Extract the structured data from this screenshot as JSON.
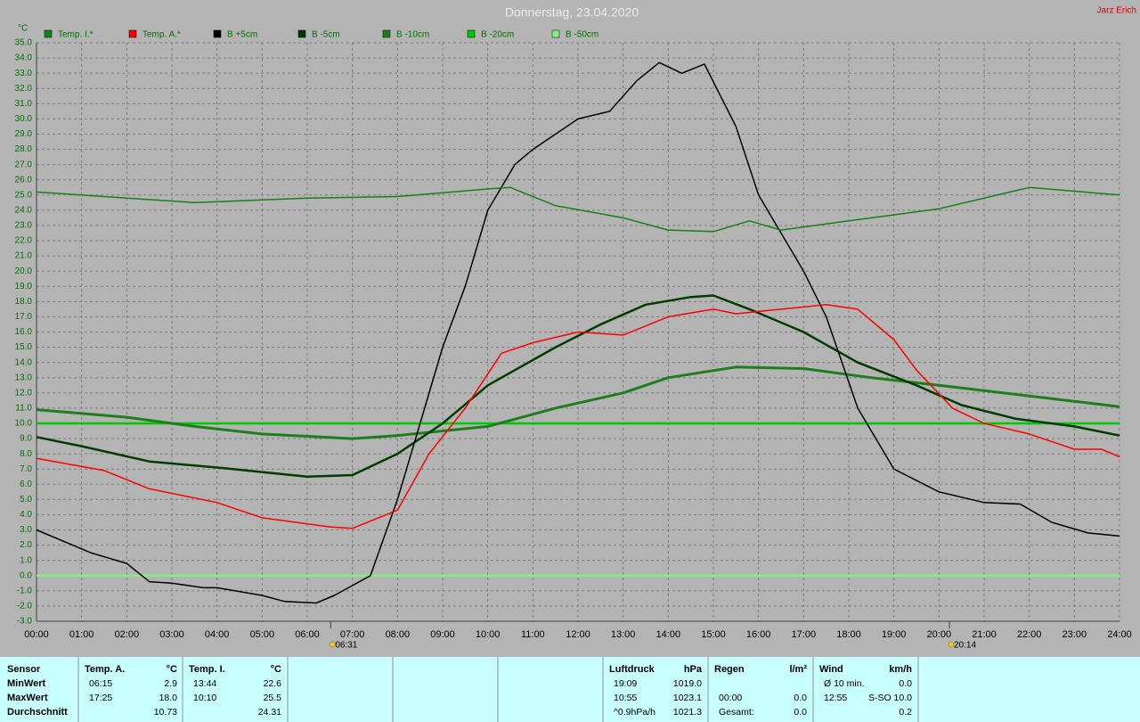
{
  "header": {
    "owner": "Jarz Erich"
  },
  "chart_data": {
    "type": "line",
    "title": "Donnerstag, 23.04.2020",
    "y_unit": "°C",
    "grid": true,
    "xlim": [
      0,
      24
    ],
    "ylim": [
      -3,
      35
    ],
    "xticks": [
      {
        "value": 0,
        "label": "00:00"
      },
      {
        "value": 1,
        "label": "01:00"
      },
      {
        "value": 2,
        "label": "02:00"
      },
      {
        "value": 3,
        "label": "03:00"
      },
      {
        "value": 4,
        "label": "04:00"
      },
      {
        "value": 5,
        "label": "05:00"
      },
      {
        "value": 6,
        "label": "06:00"
      },
      {
        "value": 7,
        "label": "07:00"
      },
      {
        "value": 8,
        "label": "08:00"
      },
      {
        "value": 9,
        "label": "09:00"
      },
      {
        "value": 10,
        "label": "10:00"
      },
      {
        "value": 11,
        "label": "11:00"
      },
      {
        "value": 12,
        "label": "12:00"
      },
      {
        "value": 13,
        "label": "13:00"
      },
      {
        "value": 14,
        "label": "14:00"
      },
      {
        "value": 15,
        "label": "15:00"
      },
      {
        "value": 16,
        "label": "16:00"
      },
      {
        "value": 17,
        "label": "17:00"
      },
      {
        "value": 18,
        "label": "18:00"
      },
      {
        "value": 19,
        "label": "19:00"
      },
      {
        "value": 20,
        "label": "20:00"
      },
      {
        "value": 21,
        "label": "21:00"
      },
      {
        "value": 22,
        "label": "22:00"
      },
      {
        "value": 23,
        "label": "23:00"
      },
      {
        "value": 24,
        "label": "24:00"
      }
    ],
    "yticks": [
      {
        "value": -3,
        "label": "-3.0"
      },
      {
        "value": -2,
        "label": "-2.0"
      },
      {
        "value": -1,
        "label": "-1.0"
      },
      {
        "value": 0,
        "label": "0.0"
      },
      {
        "value": 1,
        "label": "1.0"
      },
      {
        "value": 2,
        "label": "2.0"
      },
      {
        "value": 3,
        "label": "3.0"
      },
      {
        "value": 4,
        "label": "4.0"
      },
      {
        "value": 5,
        "label": "5.0"
      },
      {
        "value": 6,
        "label": "6.0"
      },
      {
        "value": 7,
        "label": "7.0"
      },
      {
        "value": 8,
        "label": "8.0"
      },
      {
        "value": 9,
        "label": "9.0"
      },
      {
        "value": 10,
        "label": "10.0"
      },
      {
        "value": 11,
        "label": "11.0"
      },
      {
        "value": 12,
        "label": "12.0"
      },
      {
        "value": 13,
        "label": "13.0"
      },
      {
        "value": 14,
        "label": "14.0"
      },
      {
        "value": 15,
        "label": "15.0"
      },
      {
        "value": 16,
        "label": "16.0"
      },
      {
        "value": 17,
        "label": "17.0"
      },
      {
        "value": 18,
        "label": "18.0"
      },
      {
        "value": 19,
        "label": "19.0"
      },
      {
        "value": 20,
        "label": "20.0"
      },
      {
        "value": 21,
        "label": "21.0"
      },
      {
        "value": 22,
        "label": "22.0"
      },
      {
        "value": 23,
        "label": "23.0"
      },
      {
        "value": 24,
        "label": "24.0"
      },
      {
        "value": 25,
        "label": "25.0"
      },
      {
        "value": 26,
        "label": "26.0"
      },
      {
        "value": 27,
        "label": "27.0"
      },
      {
        "value": 28,
        "label": "28.0"
      },
      {
        "value": 29,
        "label": "29.0"
      },
      {
        "value": 30,
        "label": "30.0"
      },
      {
        "value": 31,
        "label": "31.0"
      },
      {
        "value": 32,
        "label": "32.0"
      },
      {
        "value": 33,
        "label": "33.0"
      },
      {
        "value": 34,
        "label": "34.0"
      },
      {
        "value": 35,
        "label": "35.0"
      }
    ],
    "series": [
      {
        "name": "Temp. I.*",
        "color": "#178017",
        "width": 1.5,
        "x": [
          0,
          2,
          3.5,
          6,
          8,
          10,
          10.5,
          11.5,
          13,
          14,
          15,
          15.8,
          16.5,
          18,
          20,
          22,
          24
        ],
        "values": [
          25.2,
          24.8,
          24.5,
          24.8,
          24.9,
          25.4,
          25.5,
          24.3,
          23.5,
          22.7,
          22.6,
          23.3,
          22.7,
          23.3,
          24.1,
          25.5,
          25.0
        ]
      },
      {
        "name": "Temp. A.*",
        "color": "#ff0000",
        "width": 1.5,
        "x": [
          0,
          1.5,
          2.5,
          4,
          5,
          6.5,
          7,
          8,
          8.7,
          9.5,
          10.3,
          11,
          12,
          13,
          14,
          15,
          15.5,
          16.5,
          17.5,
          18.2,
          19,
          19.5,
          20.3,
          21,
          22,
          23,
          23.6,
          24
        ],
        "values": [
          7.7,
          6.9,
          5.7,
          4.8,
          3.8,
          3.2,
          3.1,
          4.3,
          8.0,
          11.0,
          14.6,
          15.3,
          16.0,
          15.8,
          17.0,
          17.5,
          17.2,
          17.5,
          17.8,
          17.5,
          15.5,
          13.5,
          11.0,
          10.0,
          9.3,
          8.3,
          8.3,
          7.8
        ]
      },
      {
        "name": "B +5cm",
        "color": "#000000",
        "width": 1.5,
        "x": [
          0,
          1.2,
          2,
          2.5,
          3,
          3.7,
          4,
          5,
          5.5,
          6.2,
          6.6,
          7.4,
          8,
          8.5,
          9,
          9.5,
          10,
          10.6,
          11,
          12,
          12.7,
          13.3,
          13.8,
          14.3,
          14.8,
          15.5,
          16,
          17,
          17.5,
          18.2,
          19,
          20,
          21,
          21.8,
          22.5,
          23.3,
          24
        ],
        "values": [
          3.0,
          1.5,
          0.8,
          -0.4,
          -0.5,
          -0.8,
          -0.8,
          -1.3,
          -1.7,
          -1.8,
          -1.3,
          0.0,
          5.0,
          10.0,
          15.0,
          19.0,
          24.0,
          27.0,
          28.0,
          30.0,
          30.5,
          32.5,
          33.7,
          33.0,
          33.6,
          29.5,
          25.0,
          20.0,
          17.0,
          11.0,
          7.0,
          5.5,
          4.8,
          4.7,
          3.5,
          2.8,
          2.6
        ]
      },
      {
        "name": "B -5cm",
        "color": "#003c00",
        "width": 2.5,
        "x": [
          0,
          1,
          2.5,
          4,
          5,
          6,
          7,
          8,
          9,
          10,
          11.5,
          12.5,
          13.5,
          14.5,
          15,
          15.8,
          17,
          18.2,
          19.5,
          20.5,
          21.7,
          23,
          24
        ],
        "values": [
          9.1,
          8.5,
          7.5,
          7.1,
          6.8,
          6.5,
          6.6,
          8.0,
          10.0,
          12.5,
          15.0,
          16.5,
          17.8,
          18.3,
          18.4,
          17.5,
          16.0,
          14.0,
          12.5,
          11.2,
          10.3,
          9.8,
          9.2
        ]
      },
      {
        "name": "B -10cm",
        "color": "#1e7e1e",
        "width": 3,
        "x": [
          0,
          2,
          3.5,
          5,
          7,
          8,
          10,
          11.5,
          13,
          14,
          15.5,
          17,
          18.5,
          20,
          22,
          24
        ],
        "values": [
          10.9,
          10.4,
          9.8,
          9.3,
          9.0,
          9.2,
          9.8,
          11.0,
          12.0,
          13.0,
          13.7,
          13.6,
          13.0,
          12.5,
          11.8,
          11.1
        ]
      },
      {
        "name": "B -20cm",
        "color": "#00c800",
        "width": 2.5,
        "x": [
          0,
          24
        ],
        "values": [
          10.0,
          10.0
        ]
      },
      {
        "name": "B -50cm",
        "color": "#80f080",
        "width": 2.5,
        "x": [
          0,
          24
        ],
        "values": [
          0.0,
          0.0
        ]
      }
    ],
    "annotations": [
      {
        "x": 6.52,
        "label": "06:31"
      },
      {
        "x": 20.23,
        "label": "20:14"
      }
    ]
  },
  "stats": {
    "row_labels": [
      "Sensor",
      "MinWert",
      "MaxWert",
      "Durchschnitt"
    ],
    "columns": [
      {
        "header": "Temp. A.",
        "unit": "°C",
        "rows": [
          {
            "left": "06:15",
            "right": "2.9"
          },
          {
            "left": "17:25",
            "right": "18.0"
          },
          {
            "right": "10.73"
          }
        ]
      },
      {
        "header": "Temp. I.",
        "unit": "°C",
        "rows": [
          {
            "left": "13:44",
            "right": "22.6"
          },
          {
            "left": "10:10",
            "right": "25.5"
          },
          {
            "right": "24.31"
          }
        ]
      },
      {
        "header": "Luftdruck",
        "unit": "hPa",
        "rows": [
          {
            "left": "19:09",
            "right": "1019.0"
          },
          {
            "left": "10:55",
            "right": "1023.1"
          },
          {
            "left": "^0.9hPa/h",
            "right": "1021.3"
          }
        ]
      },
      {
        "header": "Regen",
        "unit": "l/m²",
        "rows": [
          null,
          {
            "left": "00:00",
            "right": "0.0"
          },
          {
            "left": "Gesamt:",
            "right": "0.0"
          }
        ]
      },
      {
        "header": "Wind",
        "unit": "km/h",
        "rows": [
          {
            "left": "Ø 10 min.",
            "right": "0.0"
          },
          {
            "left": "12:55",
            "right": "S-SO 10.0"
          },
          {
            "right": "0.2"
          }
        ]
      }
    ]
  }
}
